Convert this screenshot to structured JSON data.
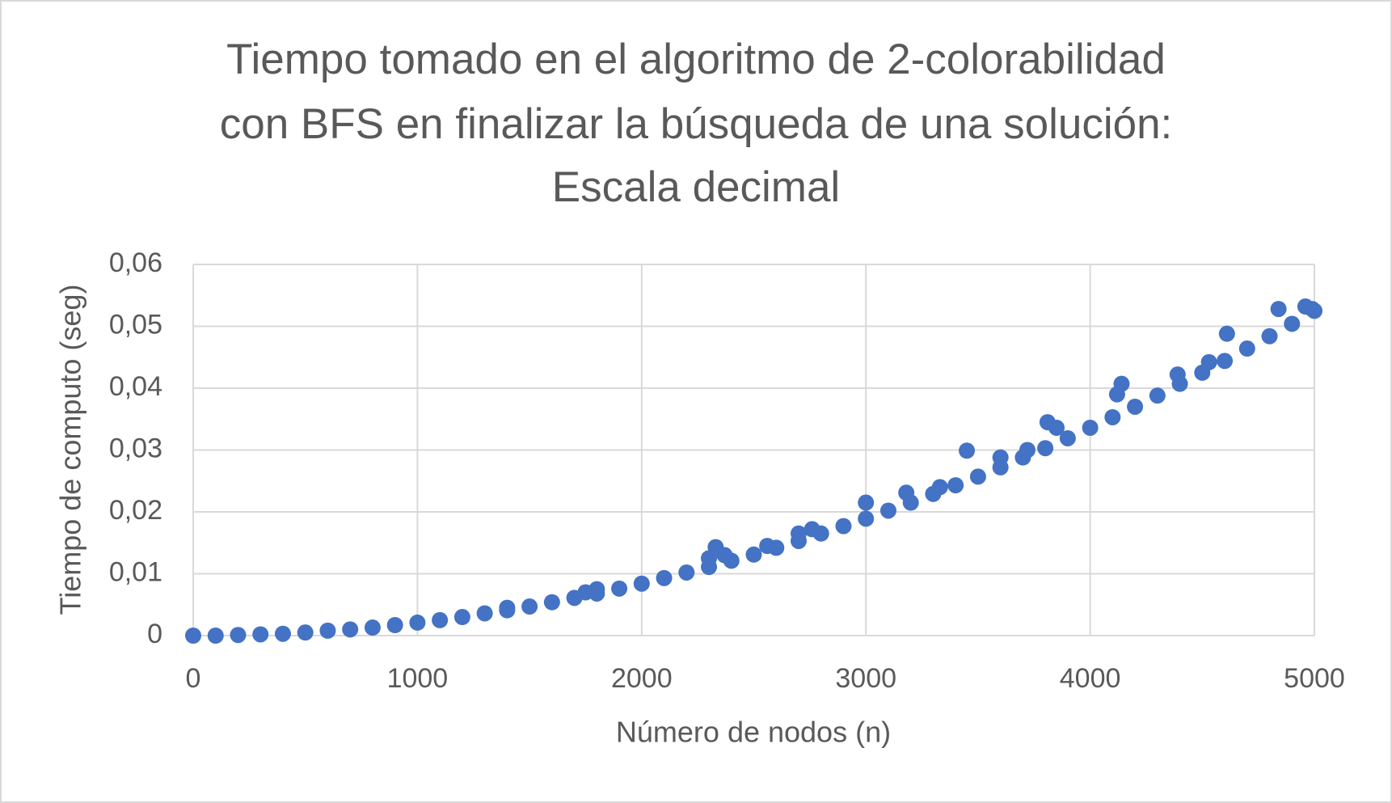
{
  "chart_data": {
    "type": "scatter",
    "title": [
      "Tiempo tomado en el algoritmo de 2-colorabilidad",
      "con BFS en finalizar la búsqueda de una solución:",
      "Escala decimal"
    ],
    "x_label": "Número de nodos (n)",
    "y_label": "Tiempo de computo (seg)",
    "color": "#4472c4",
    "grid": true,
    "xlim": [
      0,
      5000
    ],
    "xticks": [
      0,
      1000,
      2000,
      3000,
      4000,
      5000
    ],
    "ylim": [
      0,
      0.06
    ],
    "yticks": [
      0,
      {
        "value": 0.01,
        "label": "0,01"
      },
      {
        "value": 0.02,
        "label": "0,02"
      },
      {
        "value": 0.03,
        "label": "0,03"
      },
      {
        "value": 0.04,
        "label": "0,04"
      },
      {
        "value": 0.05,
        "label": "0,05"
      },
      {
        "value": 0.06,
        "label": "0,06"
      }
    ],
    "x": [
      0,
      100,
      200,
      300,
      400,
      500,
      600,
      700,
      800,
      900,
      1000,
      1100,
      1200,
      1300,
      1400,
      1500,
      1600,
      1700,
      1800,
      1900,
      2000,
      2100,
      2200,
      2300,
      2400,
      2500,
      2600,
      2700,
      2800,
      2900,
      3000,
      3100,
      3200,
      3300,
      3400,
      3500,
      3600,
      3700,
      3800,
      3900,
      4000,
      4100,
      4200,
      4300,
      4400,
      4500,
      4600,
      4700,
      4800,
      4900,
      5000,
      1400,
      1750,
      1800,
      2300,
      2330,
      2370,
      2560,
      2700,
      2760,
      3000,
      3180,
      3330,
      3450,
      3600,
      3720,
      3810,
      3850,
      4120,
      4140,
      4390,
      4530,
      4610,
      4840,
      4960,
      4990
    ],
    "values": [
      0,
      0.0,
      0.0001,
      0.0002,
      0.0003,
      0.0005,
      0.0008,
      0.001,
      0.0013,
      0.0017,
      0.0021,
      0.0025,
      0.003,
      0.0036,
      0.0041,
      0.0047,
      0.0054,
      0.0061,
      0.0068,
      0.0076,
      0.0084,
      0.0093,
      0.0102,
      0.0111,
      0.0121,
      0.0131,
      0.0142,
      0.0153,
      0.0165,
      0.0177,
      0.0189,
      0.0202,
      0.0215,
      0.0229,
      0.0243,
      0.0257,
      0.0272,
      0.0288,
      0.0303,
      0.0319,
      0.0336,
      0.0353,
      0.037,
      0.0388,
      0.0407,
      0.0425,
      0.0444,
      0.0464,
      0.0484,
      0.0504,
      0.0525,
      0.0045,
      0.007,
      0.0075,
      0.0125,
      0.0143,
      0.013,
      0.0145,
      0.0165,
      0.0172,
      0.0215,
      0.0231,
      0.024,
      0.0299,
      0.0288,
      0.03,
      0.0345,
      0.0336,
      0.039,
      0.0407,
      0.0422,
      0.0442,
      0.0488,
      0.0528,
      0.0532,
      0.0528
    ]
  }
}
